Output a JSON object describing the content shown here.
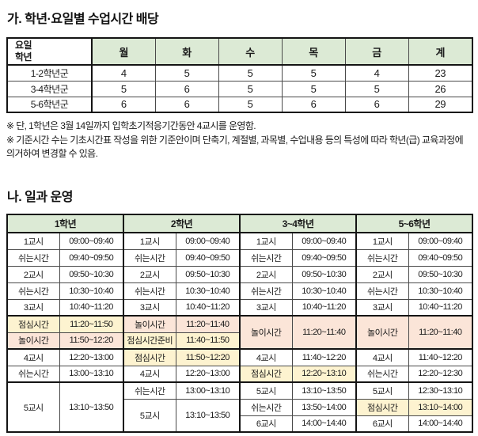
{
  "section_a": {
    "title": "가. 학년·요일별 수업시간 배당",
    "table": {
      "corner": "요일\n학년",
      "day_headers": [
        "월",
        "화",
        "수",
        "목",
        "금",
        "계"
      ],
      "rows": [
        {
          "label": "1-2학년군",
          "values": [
            "4",
            "5",
            "5",
            "5",
            "4",
            "23"
          ]
        },
        {
          "label": "3-4학년군",
          "values": [
            "5",
            "6",
            "5",
            "5",
            "5",
            "26"
          ]
        },
        {
          "label": "5-6학년군",
          "values": [
            "6",
            "6",
            "5",
            "6",
            "6",
            "29"
          ]
        }
      ]
    },
    "notes": [
      "※ 단, 1학년은 3월 14일까지 입학초기적응기간동안 4교시를 운영함.",
      "※ 기준시간 수는 기초시간표 작성을 위한 기준안이며 단축기, 계절별, 과목별, 수업내용 등의 특성에 따라 학년(급) 교육과정에 의거하여 변경할 수 있음."
    ]
  },
  "section_b": {
    "title": "나. 일과 운영",
    "table": {
      "group_headers": [
        "1학년",
        "2학년",
        "3~4학년",
        "5~6학년"
      ],
      "thick_top_rows": [
        5,
        7,
        9
      ],
      "columns": [
        [
          {
            "label": "1교시",
            "time": "09:00~09:40"
          },
          {
            "label": "쉬는시간",
            "time": "09:40~09:50"
          },
          {
            "label": "2교시",
            "time": "09:50~10:30"
          },
          {
            "label": "쉬는시간",
            "time": "10:30~10:40"
          },
          {
            "label": "3교시",
            "time": "10:40~11:20"
          },
          {
            "label": "점심시간",
            "time": "11:20~11:50",
            "bg": "lunch_yellow"
          },
          {
            "label": "놀이시간",
            "time": "11:50~12:20",
            "bg": "play_pink"
          },
          {
            "label": "4교시",
            "time": "12:20~13:00"
          },
          {
            "label": "쉬는시간",
            "time": "13:00~13:10"
          },
          {
            "label": "5교시",
            "time": "13:10~13:50",
            "rowspan": 3
          },
          null,
          null
        ],
        [
          {
            "label": "1교시",
            "time": "09:00~09:40"
          },
          {
            "label": "쉬는시간",
            "time": "09:40~09:50"
          },
          {
            "label": "2교시",
            "time": "09:50~10:30"
          },
          {
            "label": "쉬는시간",
            "time": "10:30~10:40"
          },
          {
            "label": "3교시",
            "time": "10:40~11:20"
          },
          {
            "label": "놀이시간",
            "time": "11:20~11:40",
            "bg": "play_pink"
          },
          {
            "label": "점심시간준비",
            "time": "11:40~11:50",
            "bg": "lunch_yellow"
          },
          {
            "label": "점심시간",
            "time": "11:50~12:20",
            "bg": "lunch_yellow"
          },
          {
            "label": "4교시",
            "time": "12:20~13:00"
          },
          {
            "label": "쉬는시간",
            "time": "13:00~13:10"
          },
          {
            "label": "5교시",
            "time": "13:10~13:50",
            "rowspan": 2
          },
          null
        ],
        [
          {
            "label": "1교시",
            "time": "09:00~09:40"
          },
          {
            "label": "쉬는시간",
            "time": "09:40~09:50"
          },
          {
            "label": "2교시",
            "time": "09:50~10:30"
          },
          {
            "label": "쉬는시간",
            "time": "10:30~10:40"
          },
          {
            "label": "3교시",
            "time": "10:40~11:20"
          },
          {
            "label": "놀이시간",
            "time": "11:20~11:40",
            "bg": "play_pink",
            "rowspan": 2
          },
          null,
          {
            "label": "4교시",
            "time": "11:40~12:20"
          },
          {
            "label": "점심시간",
            "time": "12:20~13:10",
            "bg": "lunch_yellow"
          },
          {
            "label": "5교시",
            "time": "13:10~13:50"
          },
          {
            "label": "쉬는시간",
            "time": "13:50~14:00"
          },
          {
            "label": "6교시",
            "time": "14:00~14:40"
          }
        ],
        [
          {
            "label": "1교시",
            "time": "09:00~09:40"
          },
          {
            "label": "쉬는시간",
            "time": "09:40~09:50"
          },
          {
            "label": "2교시",
            "time": "09:50~10:30"
          },
          {
            "label": "쉬는시간",
            "time": "10:30~10:40"
          },
          {
            "label": "3교시",
            "time": "10:40~11:20"
          },
          {
            "label": "놀이시간",
            "time": "11:20~11:40",
            "bg": "play_pink",
            "rowspan": 2
          },
          null,
          {
            "label": "4교시",
            "time": "11:40~12:20"
          },
          {
            "label": "쉬는시간",
            "time": "12:20~12:30"
          },
          {
            "label": "5교시",
            "time": "12:30~13:10"
          },
          {
            "label": "점심시간",
            "time": "13:10~14:00",
            "bg": "lunch_yellow"
          },
          {
            "label": "6교시",
            "time": "14:00~14:40"
          }
        ]
      ]
    }
  },
  "colors": {
    "header_green": "#dcead5",
    "lunch_yellow": "#fdf3d0",
    "play_pink": "#fbe5d8",
    "border_thin": "#4a4a4a",
    "border_thick": "#141414",
    "text": "#1a1a1a"
  }
}
